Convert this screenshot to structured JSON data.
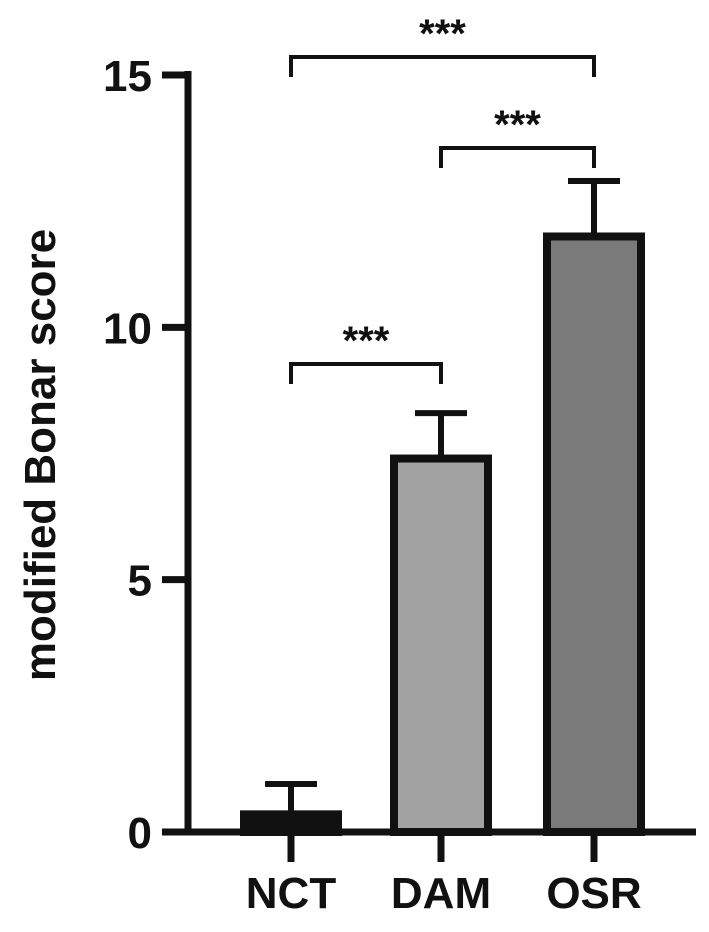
{
  "chart_data": {
    "type": "bar",
    "title": "",
    "xlabel": "",
    "ylabel": "modified Bonar score",
    "categories": [
      "NCT",
      "DAM",
      "OSR"
    ],
    "values": [
      0.35,
      7.4,
      11.8
    ],
    "errors": [
      0.6,
      0.9,
      1.1
    ],
    "bar_colors": [
      "#111111",
      "#a3a3a3",
      "#7a7a7a"
    ],
    "ylim": [
      0,
      15
    ],
    "yticks": [
      0,
      5,
      10,
      15
    ],
    "ytick_labels": [
      "0",
      "5",
      "10",
      "15"
    ],
    "grid": false,
    "legend": "none",
    "significance": [
      {
        "from": "NCT",
        "to": "DAM",
        "label": "***"
      },
      {
        "from": "DAM",
        "to": "OSR",
        "label": "***"
      },
      {
        "from": "NCT",
        "to": "OSR",
        "label": "***"
      }
    ]
  }
}
